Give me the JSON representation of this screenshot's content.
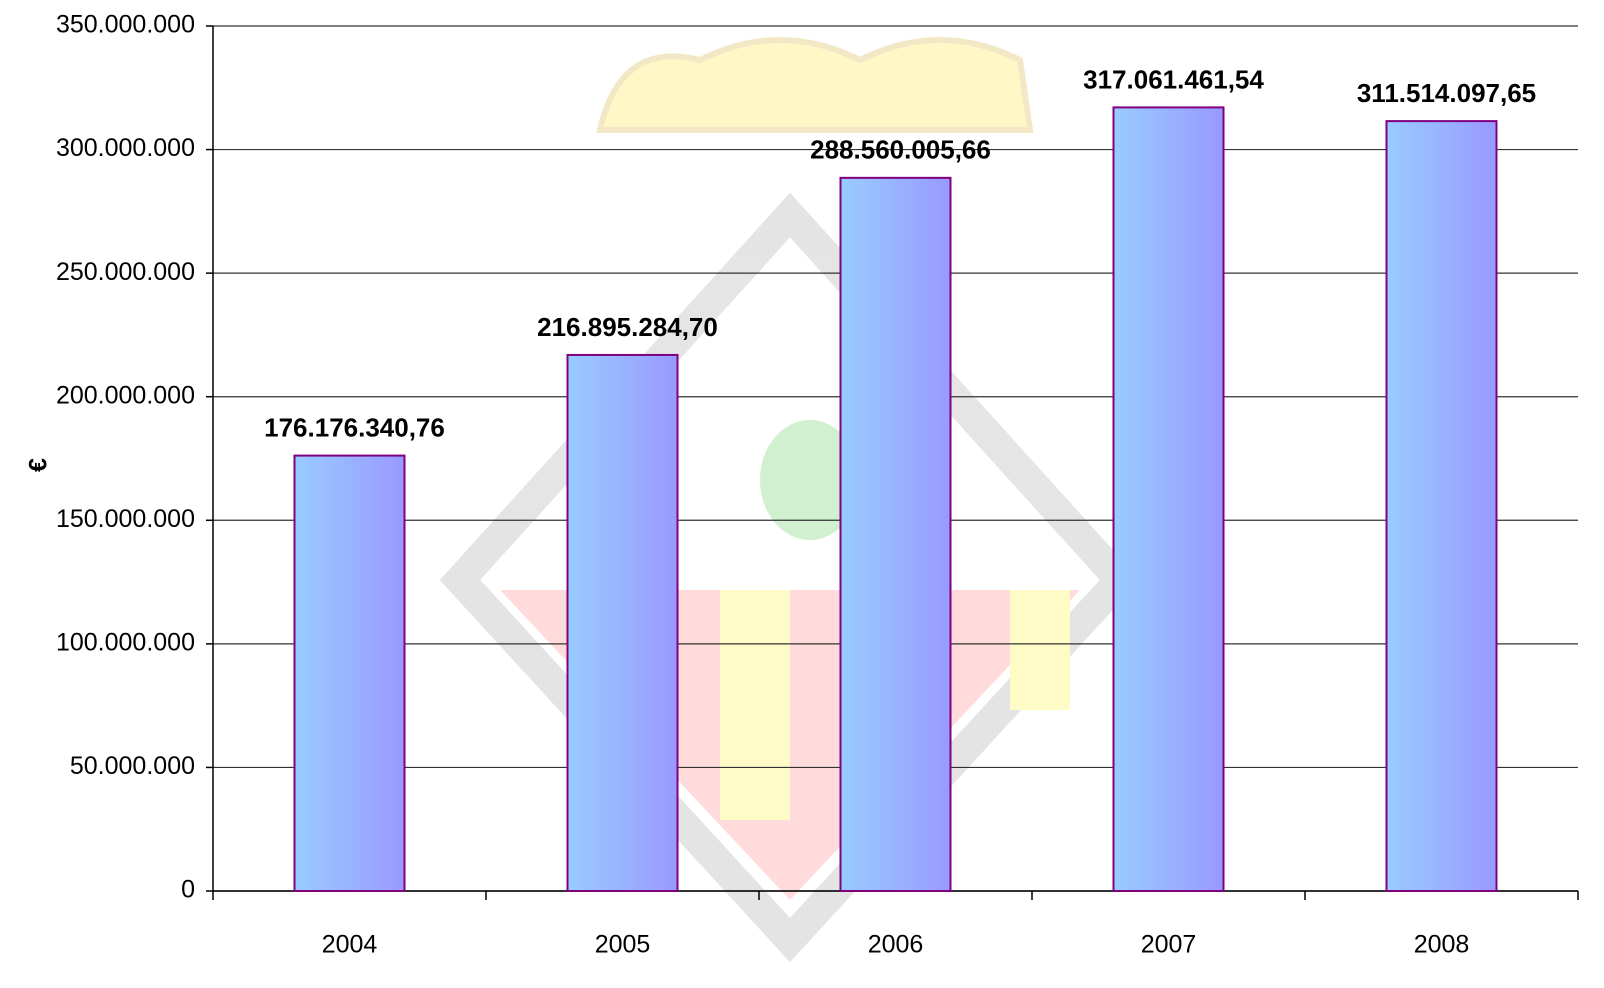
{
  "chart_data": {
    "type": "bar",
    "y_label": "€",
    "categories": [
      "2004",
      "2005",
      "2006",
      "2007",
      "2008"
    ],
    "values": [
      176176340.76,
      216895284.7,
      288560005.66,
      317061461.54,
      311514097.65
    ],
    "value_labels": [
      "176.176.340,76",
      "216.895.284,70",
      "288.560.005,66",
      "317.061.461,54",
      "311.514.097,65"
    ],
    "colors": [
      "#99ccff",
      "#9999ff"
    ],
    "edge_color": "#800080",
    "ylim": [
      0,
      350000000
    ],
    "yticks": [
      0,
      {
        "value": 50000000,
        "label": "50.000.000"
      },
      {
        "value": 100000000,
        "label": "100.000.000"
      },
      {
        "value": 150000000,
        "label": "150.000.000"
      },
      {
        "value": 200000000,
        "label": "200.000.000"
      },
      {
        "value": 250000000,
        "label": "250.000.000"
      },
      {
        "value": 300000000,
        "label": "300.000.000"
      },
      {
        "value": 350000000,
        "label": "350.000.000"
      }
    ],
    "grid": true
  }
}
